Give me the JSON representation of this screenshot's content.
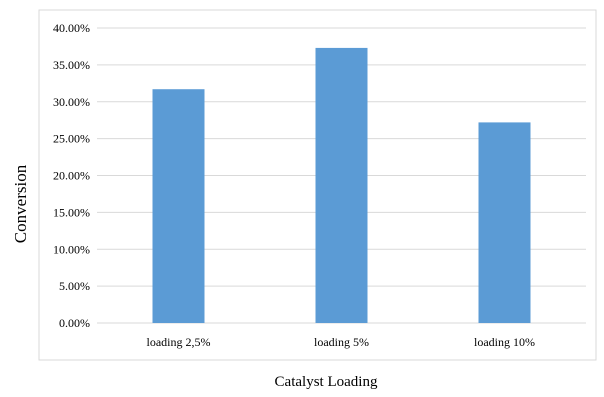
{
  "chart_data": {
    "type": "bar",
    "title": "",
    "xlabel": "Catalyst Loading",
    "ylabel": "Conversion",
    "categories": [
      "loading 2,5%",
      "loading 5%",
      "loading 10%"
    ],
    "values": [
      0.317,
      0.373,
      0.272
    ],
    "ylim": [
      0,
      0.4
    ],
    "y_ticks": [
      {
        "value": 0.0,
        "label": "0.00%"
      },
      {
        "value": 0.05,
        "label": "5.00%"
      },
      {
        "value": 0.1,
        "label": "10.00%"
      },
      {
        "value": 0.15,
        "label": "15.00%"
      },
      {
        "value": 0.2,
        "label": "20.00%"
      },
      {
        "value": 0.25,
        "label": "25.00%"
      },
      {
        "value": 0.3,
        "label": "30.00%"
      },
      {
        "value": 0.35,
        "label": "35.00%"
      },
      {
        "value": 0.4,
        "label": "40.00%"
      }
    ],
    "grid": true,
    "legend": "none",
    "colors": {
      "bar": "#5B9BD5",
      "grid": "#D9D9D9",
      "frame": "#D9D9D9",
      "text": "#000000"
    }
  }
}
